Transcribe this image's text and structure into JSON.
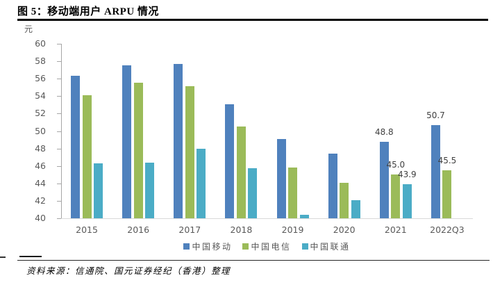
{
  "header": {
    "title": "图 5：移动端用户 ARPU 情况"
  },
  "footer": {
    "source": "资料来源：信通院、国元证券经纪（香港）整理"
  },
  "chart_data": {
    "type": "bar",
    "title": "移动端用户 ARPU 情况",
    "unit_label": "元",
    "xlabel": "",
    "ylabel": "元",
    "categories": [
      "2015",
      "2016",
      "2017",
      "2018",
      "2019",
      "2020",
      "2021",
      "2022Q3"
    ],
    "series": [
      {
        "name": "中国移动",
        "color": "#4F81BD",
        "values": [
          56.3,
          57.5,
          57.7,
          53.1,
          49.1,
          47.4,
          48.8,
          50.7
        ]
      },
      {
        "name": "中国电信",
        "color": "#9BBB59",
        "values": [
          54.1,
          55.5,
          55.1,
          50.5,
          45.8,
          44.1,
          45.0,
          45.5
        ]
      },
      {
        "name": "中国联通",
        "color": "#4BACC6",
        "values": [
          46.3,
          46.4,
          48.0,
          45.7,
          40.4,
          42.1,
          43.9,
          null
        ]
      }
    ],
    "data_labels": [
      [
        null,
        null,
        null,
        null,
        null,
        null,
        "48.8",
        "50.7"
      ],
      [
        null,
        null,
        null,
        null,
        null,
        null,
        "45.0",
        "45.5"
      ],
      [
        null,
        null,
        null,
        null,
        null,
        null,
        "43.9",
        null
      ]
    ],
    "ylim": [
      40,
      60
    ],
    "y_ticks": [
      60,
      58,
      56,
      54,
      52,
      50,
      48,
      46,
      44,
      42,
      40
    ],
    "grid": false,
    "legend_position": "bottom",
    "colors": {
      "axis_line": "#A6A6A6",
      "baseline": "#D9D9D9",
      "tick_label": "#595959",
      "data_label": "#404040",
      "title_text": "#000000"
    }
  }
}
